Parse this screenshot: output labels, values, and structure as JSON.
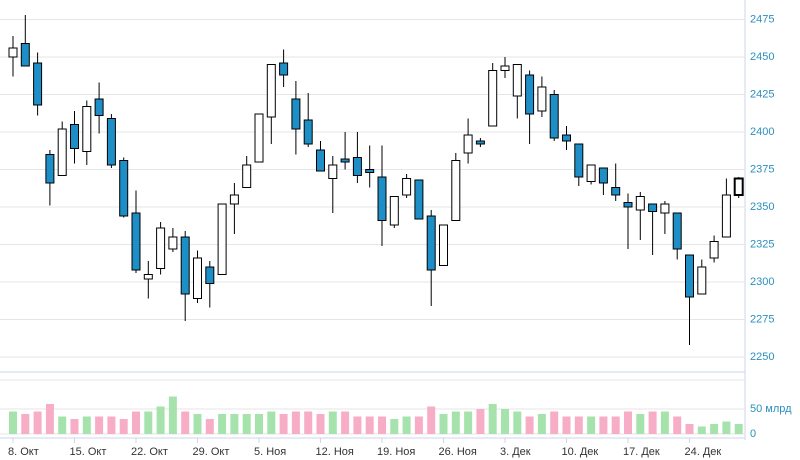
{
  "chart_data": {
    "type": "candlestick",
    "categories": [
      "8. Окт",
      null,
      null,
      null,
      null,
      "15. Окт",
      null,
      null,
      null,
      null,
      "22. Окт",
      null,
      null,
      null,
      null,
      "29. Окт",
      null,
      null,
      null,
      null,
      "5. Ноя",
      null,
      null,
      null,
      null,
      "12. Ноя",
      null,
      null,
      null,
      null,
      "19. Ноя",
      null,
      null,
      null,
      null,
      "26. Ноя",
      null,
      null,
      null,
      null,
      "3. Дек",
      null,
      null,
      null,
      null,
      "10. Дек",
      null,
      null,
      null,
      null,
      "17. Дек",
      null,
      null,
      null,
      null,
      "24. Дек",
      null,
      null,
      null,
      null
    ],
    "open": [
      2450,
      2459,
      2446,
      2385,
      2371,
      2405,
      2387,
      2422,
      2409,
      2381,
      2346,
      2302,
      2309,
      2322,
      2330,
      2289,
      2310,
      2305,
      2352,
      2363,
      2380,
      2410,
      2446,
      2422,
      2408,
      2388,
      2369,
      2382,
      2383,
      2375,
      2370,
      2338,
      2358,
      2368,
      2344,
      2311,
      2341,
      2386,
      2394,
      2404,
      2441,
      2424,
      2438,
      2414,
      2425,
      2398,
      2392,
      2367,
      2376,
      2363,
      2353,
      2348,
      2352,
      2346,
      2346,
      2318,
      2292,
      2316,
      2330,
      2358
    ],
    "high": [
      2464,
      2478,
      2453,
      2388,
      2407,
      2414,
      2421,
      2433,
      2412,
      2383,
      2361,
      2314,
      2340,
      2336,
      2334,
      2321,
      2314,
      2352,
      2366,
      2384,
      2412,
      2445,
      2455,
      2434,
      2426,
      2394,
      2384,
      2400,
      2400,
      2391,
      2391,
      2357,
      2372,
      2368,
      2348,
      2338,
      2386,
      2409,
      2396,
      2446,
      2450,
      2445,
      2441,
      2437,
      2428,
      2404,
      2392,
      2378,
      2376,
      2379,
      2359,
      2360,
      2352,
      2354,
      2346,
      2318,
      2315,
      2331,
      2369,
      2370
    ],
    "low": [
      2437,
      2444,
      2411,
      2351,
      2371,
      2379,
      2378,
      2399,
      2376,
      2343,
      2306,
      2289,
      2305,
      2320,
      2274,
      2286,
      2283,
      2305,
      2332,
      2363,
      2380,
      2392,
      2430,
      2385,
      2390,
      2374,
      2346,
      2375,
      2366,
      2363,
      2324,
      2336,
      2356,
      2342,
      2284,
      2311,
      2341,
      2379,
      2390,
      2404,
      2436,
      2409,
      2392,
      2410,
      2394,
      2388,
      2364,
      2365,
      2358,
      2354,
      2322,
      2328,
      2318,
      2332,
      2315,
      2258,
      2292,
      2313,
      2330,
      2356
    ],
    "close": [
      2456,
      2444,
      2418,
      2366,
      2402,
      2389,
      2417,
      2411,
      2378,
      2344,
      2308,
      2305,
      2336,
      2330,
      2292,
      2316,
      2299,
      2352,
      2358,
      2378,
      2412,
      2445,
      2438,
      2402,
      2392,
      2374,
      2378,
      2380,
      2371,
      2373,
      2341,
      2357,
      2369,
      2342,
      2308,
      2338,
      2381,
      2398,
      2392,
      2441,
      2444,
      2445,
      2412,
      2430,
      2396,
      2394,
      2370,
      2378,
      2366,
      2358,
      2350,
      2357,
      2347,
      2352,
      2322,
      2290,
      2310,
      2327,
      2358,
      2369
    ],
    "up_color": "#ffffff",
    "down_color": "#1e8fc6",
    "ylim": [
      2240,
      2488
    ],
    "yticks": [
      2250,
      2275,
      2300,
      2325,
      2350,
      2375,
      2400,
      2425,
      2450,
      2475
    ],
    "volume": {
      "values": [
        45,
        40,
        45,
        60,
        35,
        30,
        35,
        35,
        35,
        30,
        45,
        45,
        55,
        75,
        45,
        40,
        30,
        40,
        40,
        40,
        40,
        45,
        40,
        45,
        45,
        40,
        45,
        45,
        35,
        35,
        35,
        30,
        35,
        35,
        55,
        40,
        45,
        45,
        50,
        60,
        50,
        45,
        35,
        40,
        45,
        35,
        35,
        35,
        35,
        35,
        45,
        40,
        45,
        45,
        35,
        20,
        15,
        20,
        25,
        20
      ],
      "up_color": "#a6e3ac",
      "down_color": "#f7adc6",
      "ylim": [
        0,
        104
      ],
      "yticks": [
        0,
        {
          "value": 50,
          "label": "50 млрд"
        }
      ]
    },
    "grid": true
  }
}
